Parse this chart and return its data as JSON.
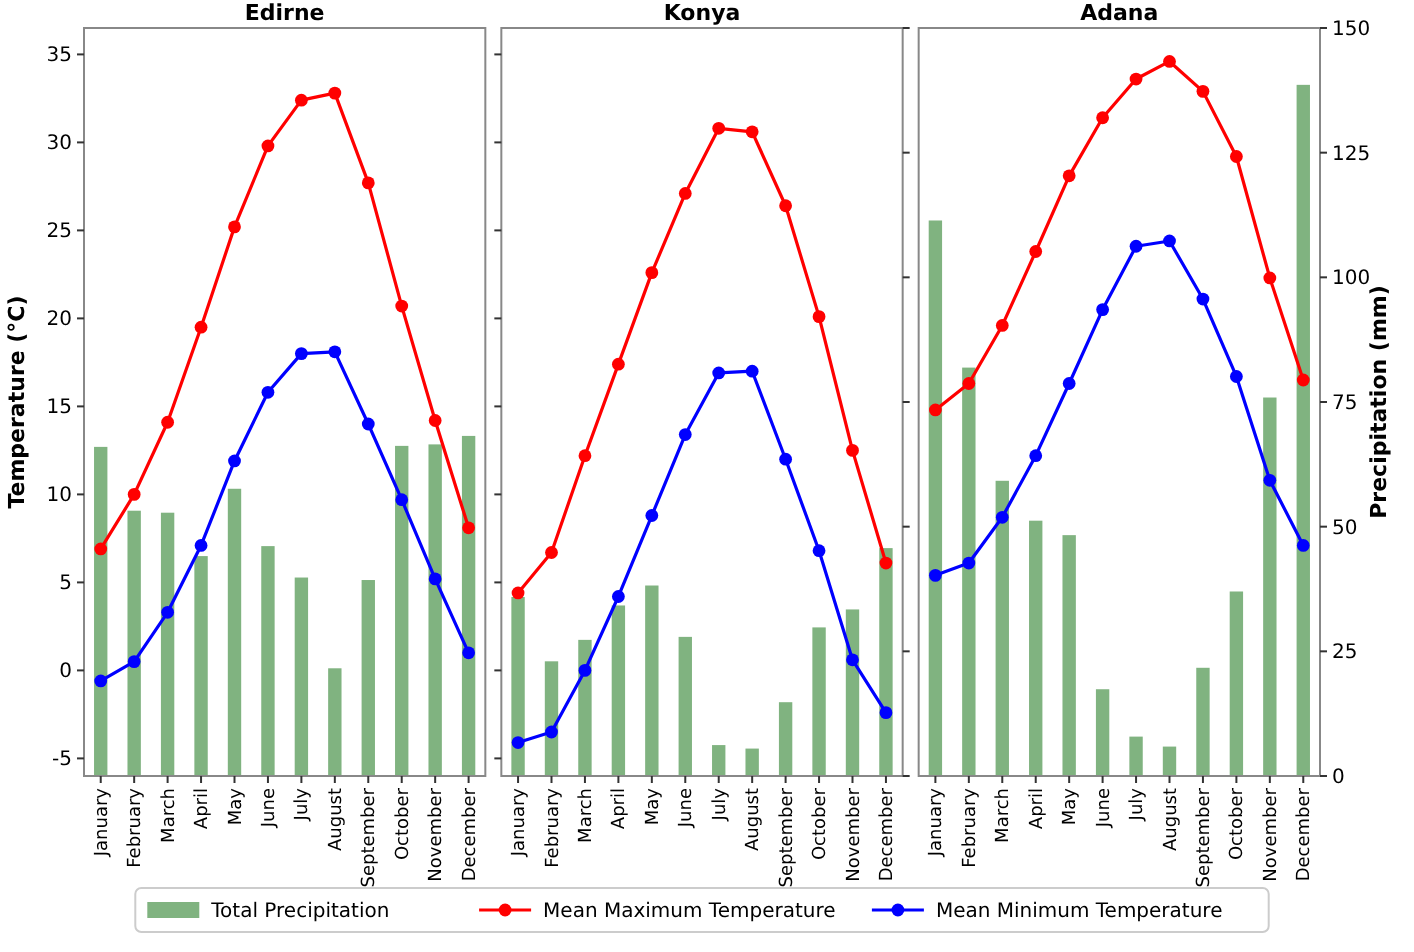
{
  "chart_data": [
    {
      "type": "line",
      "title": "Edirne",
      "ylabel": "Temperature (°C)",
      "categories": [
        "January",
        "February",
        "March",
        "April",
        "May",
        "June",
        "July",
        "August",
        "September",
        "October",
        "November",
        "December"
      ],
      "series": [
        {
          "type": "bar",
          "axis": "y2",
          "color": "#80b380",
          "values": [
            66.0,
            53.2,
            52.8,
            44.1,
            57.6,
            46.1,
            39.8,
            21.6,
            39.3,
            66.2,
            66.5,
            68.2
          ]
        },
        {
          "color": "#ff0000",
          "values": [
            6.9,
            10.0,
            14.1,
            19.5,
            25.2,
            29.8,
            32.4,
            32.8,
            27.7,
            20.7,
            14.2,
            8.1
          ]
        },
        {
          "color": "#0000ff",
          "values": [
            -0.6,
            0.5,
            3.3,
            7.1,
            11.9,
            15.8,
            18.0,
            18.1,
            14.0,
            9.7,
            5.2,
            1.0
          ]
        }
      ],
      "ylim": [
        -6,
        36.5
      ],
      "yticks": [
        -5,
        0,
        5,
        10,
        15,
        20,
        25,
        30,
        35
      ],
      "y2lim": [
        0,
        150
      ],
      "marker": "circle",
      "grid": false
    },
    {
      "type": "line",
      "title": "Konya",
      "categories": [
        "January",
        "February",
        "March",
        "April",
        "May",
        "June",
        "July",
        "August",
        "September",
        "October",
        "November",
        "December"
      ],
      "series": [
        {
          "name": "Total Precipitation",
          "type": "bar",
          "axis": "y2",
          "color": "#80b380",
          "values": [
            35.9,
            23.0,
            27.3,
            34.2,
            38.2,
            27.9,
            6.2,
            5.5,
            14.8,
            29.8,
            33.4,
            45.7
          ]
        },
        {
          "name": "Mean Maximum Temperature",
          "color": "#ff0000",
          "values": [
            4.4,
            6.7,
            12.2,
            17.4,
            22.6,
            27.1,
            30.8,
            30.6,
            26.4,
            20.1,
            12.5,
            6.1
          ]
        },
        {
          "name": "Mean Minimum Temperature",
          "color": "#0000ff",
          "values": [
            -4.1,
            -3.5,
            0.0,
            4.2,
            8.8,
            13.4,
            16.9,
            17.0,
            12.0,
            6.8,
            0.6,
            -2.4
          ]
        }
      ],
      "ylim": [
        -6,
        36.5
      ],
      "yticks": [
        -5,
        0,
        5,
        10,
        15,
        20,
        25,
        30,
        35
      ],
      "y2lim": [
        0,
        150
      ],
      "y2ticks": [
        0,
        25,
        50,
        75,
        100,
        125,
        150
      ],
      "tick_labels": "x",
      "marker": "circle",
      "grid": false,
      "legend": "bottom"
    },
    {
      "type": "line",
      "title": "Adana",
      "y2label": "Precipitation (mm)",
      "categories": [
        "January",
        "February",
        "March",
        "April",
        "May",
        "June",
        "July",
        "August",
        "September",
        "October",
        "November",
        "December"
      ],
      "series": [
        {
          "type": "bar",
          "axis": "y2",
          "color": "#80b380",
          "values": [
            111.4,
            81.9,
            59.2,
            51.2,
            48.3,
            17.4,
            7.9,
            5.9,
            21.7,
            37.0,
            75.9,
            138.6
          ]
        },
        {
          "color": "#ff0000",
          "values": [
            14.8,
            16.3,
            19.6,
            23.8,
            28.1,
            31.4,
            33.6,
            34.6,
            32.9,
            29.2,
            22.3,
            16.5
          ]
        },
        {
          "color": "#0000ff",
          "values": [
            5.4,
            6.1,
            8.7,
            12.2,
            16.3,
            20.5,
            24.1,
            24.4,
            21.1,
            16.7,
            10.8,
            7.1
          ]
        }
      ],
      "ylim": [
        -6,
        36.5
      ],
      "y2lim": [
        0,
        150
      ],
      "y2ticks": [
        0,
        25,
        50,
        75,
        100,
        125,
        150
      ],
      "marker": "circle",
      "grid": false
    }
  ]
}
